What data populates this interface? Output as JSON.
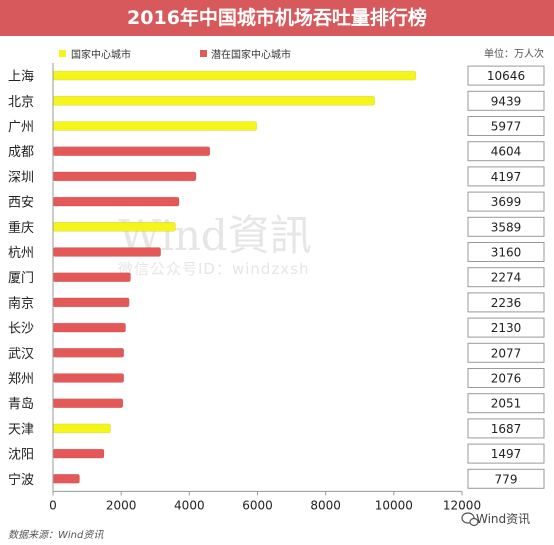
{
  "title": "2016年中国城市机场吞吐量排行榜",
  "unit": "单位：万人次",
  "source": "数据来源：Wind资讯",
  "watermark": {
    "main": "Wind資訊",
    "sub": "微信公众号ID：windzxsh"
  },
  "brand": "Wind资讯",
  "legend": [
    {
      "label": "国家中心城市",
      "color": "#f5f51a"
    },
    {
      "label": "潜在国家中心城市",
      "color": "#e45858"
    }
  ],
  "chart_data": {
    "type": "bar",
    "orientation": "horizontal",
    "categories": [
      "上海",
      "北京",
      "广州",
      "成都",
      "深圳",
      "西安",
      "重庆",
      "杭州",
      "厦门",
      "南京",
      "长沙",
      "武汉",
      "郑州",
      "青岛",
      "天津",
      "沈阳",
      "宁波"
    ],
    "values": [
      10646,
      9439,
      5977,
      4604,
      4197,
      3699,
      3589,
      3160,
      2274,
      2236,
      2130,
      2077,
      2076,
      2051,
      1687,
      1497,
      779
    ],
    "groups": [
      "国家中心城市",
      "国家中心城市",
      "国家中心城市",
      "潜在国家中心城市",
      "潜在国家中心城市",
      "潜在国家中心城市",
      "国家中心城市",
      "潜在国家中心城市",
      "潜在国家中心城市",
      "潜在国家中心城市",
      "潜在国家中心城市",
      "潜在国家中心城市",
      "潜在国家中心城市",
      "潜在国家中心城市",
      "国家中心城市",
      "潜在国家中心城市",
      "潜在国家中心城市"
    ],
    "value_labels": [
      "10646",
      "9439",
      "5977",
      "4604",
      "4197",
      "3699",
      "3589",
      "3160",
      "2274",
      "2236",
      "2130",
      "2077",
      "2076",
      "2051",
      "1687",
      "1497",
      "779"
    ],
    "x_ticks": [
      "0",
      "2000",
      "4000",
      "6000",
      "8000",
      "10000",
      "12000"
    ],
    "xlim": [
      0,
      12000
    ],
    "colors": {
      "国家中心城市": "#f5f51a",
      "潜在国家中心城市": "#e45858"
    },
    "grid": false,
    "legend_position": "top-left"
  }
}
